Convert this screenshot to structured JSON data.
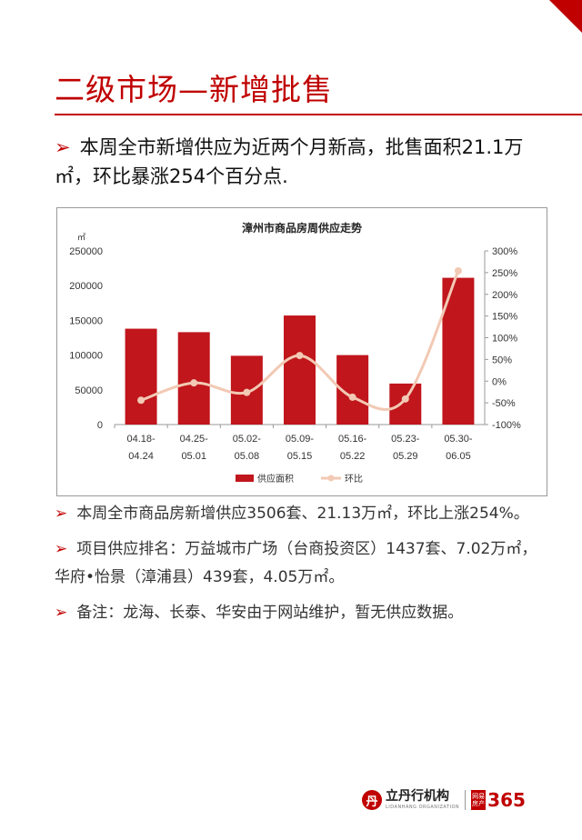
{
  "page": {
    "title": "二级市场—新增批售",
    "lead_arrow": "➢",
    "lead_text": "本周全市新增供应为近两个月新高，批售面积21.1万㎡，环比暴涨254个百分点."
  },
  "chart_data": {
    "type": "bar",
    "title": "漳州市商品房周供应走势",
    "y_unit": "㎡",
    "categories": [
      [
        "04.18-",
        "04.24"
      ],
      [
        "04.25-",
        "05.01"
      ],
      [
        "05.02-",
        "05.08"
      ],
      [
        "05.09-",
        "05.15"
      ],
      [
        "05.16-",
        "05.22"
      ],
      [
        "05.23-",
        "05.29"
      ],
      [
        "05.30-",
        "06.05"
      ]
    ],
    "series": [
      {
        "name": "供应面积",
        "type": "bar",
        "axis": "left",
        "color": "#c0161c",
        "values": [
          138000,
          133000,
          99000,
          157000,
          100000,
          59000,
          211300
        ]
      },
      {
        "name": "环比",
        "type": "line",
        "axis": "right",
        "color": "#f2c9b4",
        "values": [
          -0.44,
          -0.04,
          -0.26,
          0.59,
          -0.37,
          -0.41,
          2.54
        ]
      }
    ],
    "ylim_left": [
      0,
      250000
    ],
    "yticks_left": [
      "0",
      "50000",
      "100000",
      "150000",
      "200000",
      "250000"
    ],
    "ylim_right": [
      -1,
      3
    ],
    "yticks_right": [
      "-100%",
      "-50%",
      "0%",
      "50%",
      "100%",
      "150%",
      "200%",
      "250%",
      "300%"
    ],
    "grid": false,
    "legend_position": "bottom"
  },
  "notes": [
    {
      "arrow": "➢",
      "text": "本周全市商品房新增供应3506套、21.13万㎡，环比上涨254%。"
    },
    {
      "arrow": "➢",
      "text": "项目供应排名：万益城市广场（台商投资区）1437套、7.02万㎡，华府•怡景（漳浦县）439套，4.05万㎡。"
    },
    {
      "arrow": "➢",
      "text": "备注：龙海、长泰、华安由于网站维护，暂无供应数据。"
    }
  ],
  "footer": {
    "logo_char": "丹",
    "org_name": "立丹行机构",
    "org_sub": "LIDANHANG ORGANIZATION",
    "badge_text": "网易房产",
    "badge_num": "365"
  },
  "colors": {
    "accent": "#c00000",
    "bar": "#c0161c",
    "line": "#f2c9b4"
  }
}
